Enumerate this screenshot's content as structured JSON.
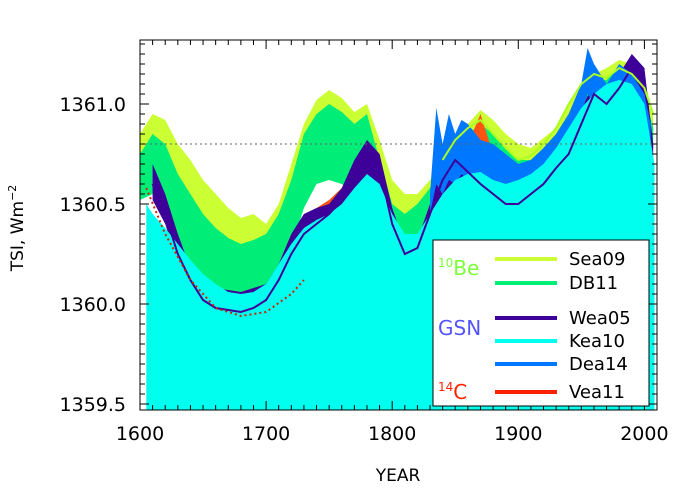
{
  "chart_data": {
    "type": "area",
    "xlabel": "YEAR",
    "ylabel_main": "TSI, Wm",
    "ylabel_sup": "−2",
    "xlim": [
      1600,
      2010
    ],
    "ylim": [
      1359.47,
      1361.32
    ],
    "x_ticks": [
      1600,
      1700,
      1800,
      1900,
      2000
    ],
    "y_ticks": [
      1359.5,
      1360.0,
      1360.5,
      1361.0
    ],
    "y_tick_labels": [
      "1359.5",
      "1360.0",
      "1360.5",
      "1361.0"
    ],
    "reference_line": 1360.8,
    "legend": {
      "groups": [
        {
          "label_sup": "10",
          "label": "Be",
          "color": "#7dff3a",
          "entries": [
            {
              "name": "Sea09",
              "color": "#ccff33"
            },
            {
              "name": "DB11",
              "color": "#00ee77"
            }
          ]
        },
        {
          "label_sup": "",
          "label": "GSN",
          "color": "#5555ff",
          "entries": [
            {
              "name": "Wea05",
              "color": "#3d0099"
            },
            {
              "name": "Kea10",
              "color": "#00ffee"
            },
            {
              "name": "Dea14",
              "color": "#0077ff"
            }
          ]
        },
        {
          "label_sup": "14",
          "label": "C",
          "color": "#ff2200",
          "entries": [
            {
              "name": "Vea11",
              "color": "#ff2200"
            }
          ]
        }
      ]
    },
    "series": [
      {
        "name": "Sea09",
        "kind": "band",
        "color": "#ccff33",
        "x": [
          1600,
          1610,
          1620,
          1630,
          1640,
          1650,
          1660,
          1670,
          1680,
          1690,
          1700,
          1710,
          1720,
          1730,
          1740,
          1750,
          1760,
          1770,
          1780,
          1790,
          1800,
          1810,
          1820,
          1830,
          1840,
          1850,
          1860,
          1870,
          1880,
          1890,
          1900,
          1910,
          1920,
          1930,
          1940,
          1950,
          1960,
          1970,
          1980,
          1990,
          2000,
          2007
        ],
        "upper": [
          1360.85,
          1360.95,
          1360.92,
          1360.8,
          1360.72,
          1360.62,
          1360.55,
          1360.48,
          1360.43,
          1360.45,
          1360.4,
          1360.5,
          1360.7,
          1360.9,
          1361.02,
          1361.07,
          1361.03,
          1360.96,
          1361.0,
          1360.82,
          1360.62,
          1360.55,
          1360.55,
          1360.62,
          1360.72,
          1360.84,
          1360.9,
          1360.97,
          1360.92,
          1360.85,
          1360.8,
          1360.78,
          1360.83,
          1360.88,
          1361.0,
          1361.1,
          1361.15,
          1361.18,
          1361.22,
          1361.2,
          1361.12,
          1360.95
        ],
        "lower": [
          1360.6,
          1360.65,
          1360.58,
          1360.42,
          1360.3,
          1360.2,
          1360.15,
          1360.12,
          1360.08,
          1360.05,
          1360.05,
          1360.15,
          1360.35,
          1360.55,
          1360.68,
          1360.72,
          1360.68,
          1360.62,
          1360.7,
          1360.5,
          1360.32,
          1360.3,
          1360.35,
          1360.48,
          1360.58,
          1360.65,
          1360.68,
          1360.72,
          1360.66,
          1360.62,
          1360.64,
          1360.66,
          1360.7,
          1360.74,
          1360.84,
          1360.95,
          1361.0,
          1361.03,
          1361.08,
          1361.06,
          1360.98,
          1360.82
        ]
      },
      {
        "name": "DB11",
        "kind": "band",
        "color": "#00ee77",
        "x": [
          1600,
          1610,
          1620,
          1630,
          1640,
          1650,
          1660,
          1670,
          1680,
          1690,
          1700,
          1710,
          1720,
          1730,
          1740,
          1750,
          1760,
          1770,
          1780,
          1790,
          1800,
          1810,
          1820,
          1830,
          1840,
          1850,
          1860,
          1870,
          1880,
          1890,
          1900,
          1910,
          1920,
          1930,
          1940,
          1950,
          1960,
          1970,
          1980,
          1990,
          2000,
          2007
        ],
        "upper": [
          1360.75,
          1360.85,
          1360.8,
          1360.65,
          1360.55,
          1360.45,
          1360.38,
          1360.33,
          1360.3,
          1360.32,
          1360.35,
          1360.45,
          1360.62,
          1360.85,
          1360.95,
          1361.0,
          1360.96,
          1360.9,
          1360.95,
          1360.72,
          1360.5,
          1360.45,
          1360.5,
          1360.58,
          1360.68,
          1360.78,
          1360.85,
          1360.9,
          1360.85,
          1360.78,
          1360.72,
          1360.72,
          1360.78,
          1360.85,
          1360.95,
          1361.05,
          1361.12,
          1361.12,
          1361.18,
          1361.12,
          1361.05,
          1360.88
        ],
        "lower": [
          1360.52,
          1360.55,
          1360.45,
          1360.3,
          1360.2,
          1360.1,
          1360.05,
          1360.0,
          1359.98,
          1359.98,
          1360.0,
          1360.1,
          1360.28,
          1360.48,
          1360.6,
          1360.62,
          1360.6,
          1360.55,
          1360.6,
          1360.4,
          1360.25,
          1360.25,
          1360.32,
          1360.45,
          1360.55,
          1360.6,
          1360.62,
          1360.65,
          1360.58,
          1360.55,
          1360.58,
          1360.6,
          1360.64,
          1360.7,
          1360.8,
          1360.9,
          1360.95,
          1360.98,
          1361.03,
          1361.0,
          1360.92,
          1360.78
        ]
      },
      {
        "name": "Vea11",
        "kind": "band",
        "color": "#ff5511",
        "x": [
          1640,
          1650,
          1660,
          1670,
          1680,
          1690,
          1700,
          1710,
          1720,
          1730,
          1740,
          1750,
          1760,
          1770,
          1780,
          1790,
          1800,
          1810,
          1820,
          1830,
          1840,
          1850,
          1860,
          1870,
          1880,
          1885
        ],
        "upper": [
          1360.05,
          1360.0,
          1359.98,
          1359.97,
          1359.97,
          1359.98,
          1360.05,
          1360.15,
          1360.3,
          1360.42,
          1360.48,
          1360.52,
          1360.58,
          1360.65,
          1360.78,
          1360.72,
          1360.45,
          1360.3,
          1360.32,
          1360.45,
          1360.55,
          1360.68,
          1360.8,
          1360.95,
          1360.75,
          1360.6
        ],
        "lower": [
          1359.98,
          1359.93,
          1359.92,
          1359.92,
          1359.93,
          1359.94,
          1359.98,
          1360.05,
          1360.12,
          1360.2,
          1360.25,
          1360.2,
          1360.15,
          1360.25,
          1360.35,
          1360.25,
          1360.15,
          1360.22,
          1360.22,
          1360.3,
          1360.42,
          1360.5,
          1360.58,
          1360.62,
          1360.55,
          1360.48
        ]
      },
      {
        "name": "Wea05",
        "kind": "band",
        "color": "#3d0099",
        "x": [
          1610,
          1620,
          1630,
          1640,
          1650,
          1660,
          1670,
          1680,
          1690,
          1700,
          1710,
          1720,
          1730,
          1740,
          1750,
          1760,
          1770,
          1780,
          1790,
          1800,
          1810,
          1820,
          1830,
          1840,
          1850,
          1860,
          1870,
          1880,
          1890,
          1900,
          1910,
          1920,
          1930,
          1940,
          1950,
          1960,
          1970,
          1980,
          1990,
          2000,
          2007
        ],
        "upper": [
          1360.7,
          1360.55,
          1360.35,
          1360.18,
          1360.1,
          1360.08,
          1360.07,
          1360.06,
          1360.08,
          1360.1,
          1360.2,
          1360.35,
          1360.45,
          1360.48,
          1360.5,
          1360.58,
          1360.72,
          1360.82,
          1360.75,
          1360.48,
          1360.3,
          1360.32,
          1360.5,
          1360.7,
          1360.82,
          1360.75,
          1360.7,
          1360.65,
          1360.58,
          1360.55,
          1360.6,
          1360.66,
          1360.72,
          1360.8,
          1360.98,
          1361.1,
          1361.05,
          1361.15,
          1361.25,
          1361.18,
          1360.8
        ],
        "lower": [
          1360.52,
          1360.4,
          1360.2,
          1360.05,
          1359.98,
          1359.96,
          1359.95,
          1359.95,
          1359.96,
          1359.98,
          1360.05,
          1360.15,
          1360.25,
          1360.3,
          1360.32,
          1360.38,
          1360.5,
          1360.6,
          1360.55,
          1360.3,
          1360.2,
          1360.22,
          1360.35,
          1360.5,
          1360.6,
          1360.55,
          1360.5,
          1360.45,
          1360.4,
          1360.4,
          1360.45,
          1360.5,
          1360.58,
          1360.68,
          1360.8,
          1360.95,
          1360.92,
          1361.0,
          1361.1,
          1361.05,
          1360.7
        ]
      },
      {
        "name": "Dea14",
        "kind": "band",
        "color": "#0077ff",
        "x": [
          1830,
          1835,
          1840,
          1845,
          1850,
          1855,
          1860,
          1870,
          1880,
          1890,
          1900,
          1910,
          1920,
          1930,
          1940,
          1950,
          1955,
          1960,
          1970,
          1980,
          1990,
          2000,
          2005
        ],
        "upper": [
          1360.55,
          1360.98,
          1360.8,
          1360.95,
          1360.85,
          1360.92,
          1360.9,
          1360.82,
          1360.8,
          1360.75,
          1360.7,
          1360.72,
          1360.78,
          1360.85,
          1360.95,
          1361.1,
          1361.28,
          1361.2,
          1361.1,
          1361.2,
          1361.15,
          1361.05,
          1360.9
        ],
        "lower": [
          1360.45,
          1360.6,
          1360.55,
          1360.62,
          1360.6,
          1360.65,
          1360.62,
          1360.6,
          1360.58,
          1360.55,
          1360.55,
          1360.58,
          1360.62,
          1360.7,
          1360.8,
          1360.95,
          1361.05,
          1361.0,
          1360.95,
          1361.02,
          1361.0,
          1360.92,
          1360.8
        ]
      },
      {
        "name": "Kea10",
        "kind": "area",
        "color": "#00ffee",
        "x": [
          1605,
          1610,
          1620,
          1630,
          1640,
          1650,
          1660,
          1670,
          1680,
          1690,
          1700,
          1710,
          1720,
          1730,
          1740,
          1750,
          1760,
          1770,
          1780,
          1790,
          1800,
          1810,
          1820,
          1830,
          1840,
          1850,
          1860,
          1870,
          1880,
          1890,
          1900,
          1910,
          1920,
          1930,
          1940,
          1950,
          1960,
          1970,
          1980,
          1990,
          2000,
          2008
        ],
        "y": [
          1360.5,
          1360.45,
          1360.38,
          1360.3,
          1360.22,
          1360.15,
          1360.1,
          1360.06,
          1360.05,
          1360.06,
          1360.1,
          1360.2,
          1360.3,
          1360.38,
          1360.42,
          1360.45,
          1360.5,
          1360.58,
          1360.65,
          1360.6,
          1360.45,
          1360.35,
          1360.35,
          1360.45,
          1360.55,
          1360.62,
          1360.65,
          1360.66,
          1360.62,
          1360.6,
          1360.62,
          1360.65,
          1360.7,
          1360.78,
          1360.88,
          1360.98,
          1361.05,
          1361.1,
          1361.12,
          1361.1,
          1361.0,
          1360.7
        ]
      },
      {
        "name": "Wea05",
        "kind": "line",
        "color": "#3d0099",
        "x": [
          1610,
          1620,
          1630,
          1640,
          1650,
          1660,
          1670,
          1680,
          1690,
          1700,
          1710,
          1720,
          1730,
          1740,
          1750,
          1760,
          1770,
          1780,
          1790,
          1800,
          1810,
          1820,
          1830,
          1840,
          1850,
          1860,
          1870,
          1880,
          1890,
          1900,
          1910,
          1920,
          1930,
          1940,
          1950,
          1960,
          1970,
          1980,
          1990,
          2000
        ],
        "y": [
          1360.6,
          1360.45,
          1360.25,
          1360.12,
          1360.02,
          1359.98,
          1359.97,
          1359.96,
          1359.98,
          1360.02,
          1360.12,
          1360.25,
          1360.35,
          1360.4,
          1360.45,
          1360.52,
          1360.65,
          1360.78,
          1360.68,
          1360.4,
          1360.25,
          1360.28,
          1360.45,
          1360.62,
          1360.72,
          1360.66,
          1360.6,
          1360.55,
          1360.5,
          1360.5,
          1360.55,
          1360.6,
          1360.68,
          1360.75,
          1360.9,
          1361.05,
          1361.0,
          1361.08,
          1361.18,
          1361.1
        ]
      },
      {
        "name": "Sea09",
        "kind": "line",
        "color": "#aaff22",
        "x": [
          1840,
          1850,
          1860,
          1870,
          1880,
          1890,
          1900,
          1910,
          1920,
          1930,
          1940,
          1950,
          1960,
          1970,
          1980,
          1990,
          2000,
          2007
        ],
        "y": [
          1360.72,
          1360.82,
          1360.88,
          1360.92,
          1360.85,
          1360.78,
          1360.72,
          1360.74,
          1360.8,
          1360.88,
          1361.0,
          1361.1,
          1361.15,
          1361.13,
          1361.18,
          1361.15,
          1361.08,
          1360.95
        ]
      },
      {
        "name": "Vea11",
        "kind": "dotted",
        "color": "#cc2200",
        "x": [
          1605,
          1620,
          1640,
          1660,
          1680,
          1700,
          1720,
          1730
        ],
        "y": [
          1360.58,
          1360.35,
          1360.12,
          1359.98,
          1359.94,
          1359.96,
          1360.05,
          1360.12
        ]
      }
    ]
  }
}
